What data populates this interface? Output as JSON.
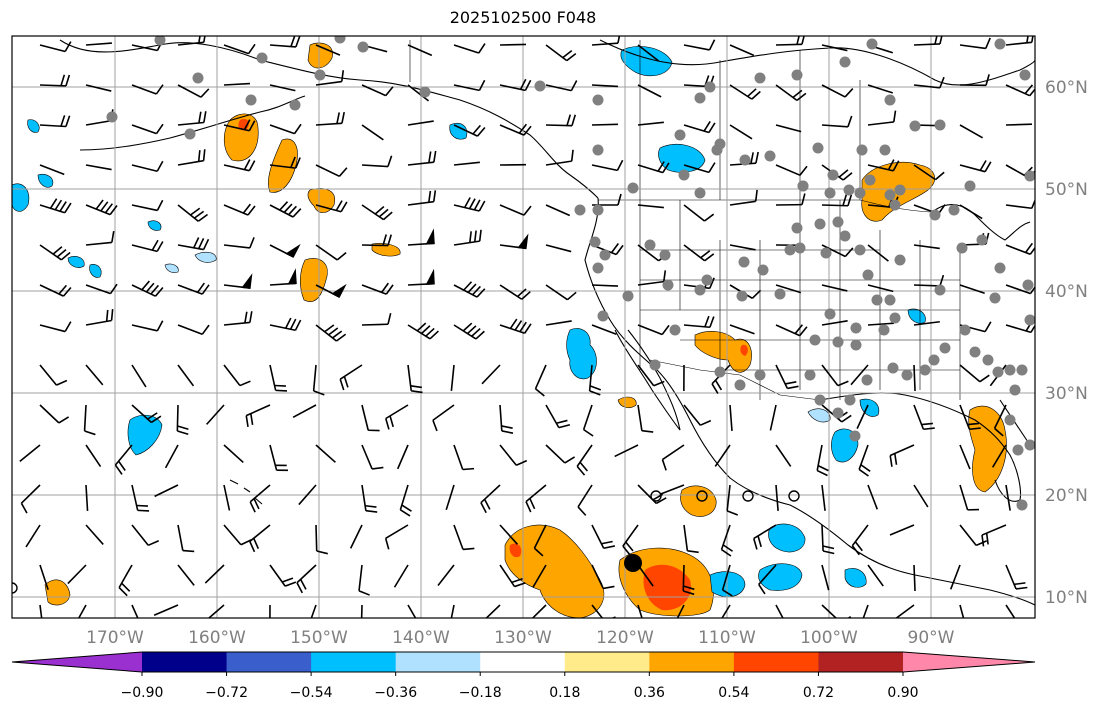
{
  "title": "2025102500 F048",
  "map": {
    "lat_labels": [
      "60°N",
      "50°N",
      "40°N",
      "30°N",
      "20°N",
      "10°N"
    ],
    "lon_labels": [
      "170°W",
      "160°W",
      "150°W",
      "140°W",
      "130°W",
      "120°W",
      "110°W",
      "100°W",
      "90°W"
    ],
    "gridline_color": "#a0a0a0",
    "land_color": "#000000"
  },
  "colorbar": {
    "levels": [
      "−0.90",
      "−0.72",
      "−0.54",
      "−0.36",
      "−0.18",
      "0.18",
      "0.36",
      "0.54",
      "0.72",
      "0.90"
    ],
    "colors": [
      "#9b30d0",
      "#00008b",
      "#3a5fcd",
      "#00bfff",
      "#b0e2ff",
      "#ffffff",
      "#ffeb8a",
      "#ffa500",
      "#ff4500",
      "#b22222",
      "#ff88aa"
    ]
  },
  "legend_colors": {
    "positive_fill": "#ffa500",
    "positive_strong": "#ff4500",
    "negative_fill": "#00bfff",
    "negative_light": "#b0e2ff",
    "station_dot": "#808080"
  }
}
